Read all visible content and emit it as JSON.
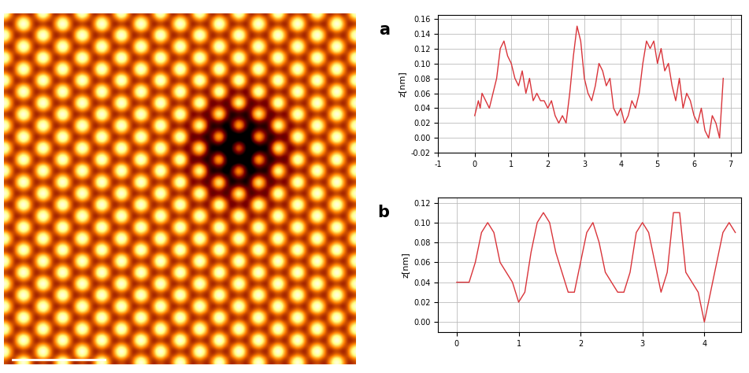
{
  "chart_data": [
    {
      "type": "line",
      "title": "a",
      "y_label": "z[nm]",
      "color": "#d9343a",
      "grid": true,
      "x": [
        0.0,
        0.1,
        0.15,
        0.2,
        0.3,
        0.4,
        0.5,
        0.6,
        0.7,
        0.8,
        0.9,
        1.0,
        1.1,
        1.2,
        1.3,
        1.4,
        1.5,
        1.6,
        1.7,
        1.8,
        1.9,
        2.0,
        2.1,
        2.2,
        2.3,
        2.4,
        2.5,
        2.6,
        2.7,
        2.8,
        2.9,
        3.0,
        3.1,
        3.2,
        3.3,
        3.4,
        3.5,
        3.6,
        3.7,
        3.8,
        3.9,
        4.0,
        4.1,
        4.2,
        4.3,
        4.4,
        4.5,
        4.6,
        4.7,
        4.8,
        4.9,
        5.0,
        5.1,
        5.2,
        5.3,
        5.4,
        5.5,
        5.6,
        5.7,
        5.8,
        5.9,
        6.0,
        6.1,
        6.2,
        6.3,
        6.4,
        6.5,
        6.6,
        6.7,
        6.8
      ],
      "values": [
        0.03,
        0.05,
        0.04,
        0.06,
        0.05,
        0.04,
        0.06,
        0.08,
        0.12,
        0.13,
        0.11,
        0.1,
        0.08,
        0.07,
        0.09,
        0.06,
        0.08,
        0.05,
        0.06,
        0.05,
        0.05,
        0.04,
        0.05,
        0.03,
        0.02,
        0.03,
        0.02,
        0.06,
        0.11,
        0.15,
        0.13,
        0.08,
        0.06,
        0.05,
        0.07,
        0.1,
        0.09,
        0.07,
        0.08,
        0.04,
        0.03,
        0.04,
        0.02,
        0.03,
        0.05,
        0.04,
        0.06,
        0.1,
        0.13,
        0.12,
        0.13,
        0.1,
        0.12,
        0.09,
        0.1,
        0.07,
        0.05,
        0.08,
        0.04,
        0.06,
        0.05,
        0.03,
        0.02,
        0.04,
        0.01,
        0.0,
        0.03,
        0.02,
        0.0,
        0.08
      ],
      "xlim": [
        -1,
        7.3
      ],
      "xticks": [
        -1,
        0,
        1,
        2,
        3,
        4,
        5,
        6,
        7
      ],
      "ylim": [
        -0.02,
        0.165
      ],
      "yticks": [
        -0.02,
        {
          "value": 0.0,
          "label": "0.00"
        },
        0.02,
        0.04,
        0.06,
        0.08,
        {
          "value": 0.1,
          "label": "0.10"
        },
        0.12,
        0.14,
        0.16
      ]
    },
    {
      "type": "line",
      "title": "b",
      "y_label": "z[nm]",
      "color": "#d9343a",
      "grid": true,
      "x": [
        0.0,
        0.1,
        0.2,
        0.3,
        0.4,
        0.5,
        0.6,
        0.7,
        0.8,
        0.9,
        1.0,
        1.1,
        1.2,
        1.3,
        1.4,
        1.5,
        1.6,
        1.7,
        1.8,
        1.9,
        2.0,
        2.1,
        2.2,
        2.3,
        2.4,
        2.5,
        2.6,
        2.7,
        2.8,
        2.9,
        3.0,
        3.1,
        3.2,
        3.3,
        3.4,
        3.5,
        3.6,
        3.7,
        3.8,
        3.9,
        4.0,
        4.1,
        4.2,
        4.3,
        4.4,
        4.5
      ],
      "values": [
        0.04,
        0.04,
        0.04,
        0.06,
        0.09,
        0.1,
        0.09,
        0.06,
        0.05,
        0.04,
        0.02,
        0.03,
        0.07,
        0.1,
        0.11,
        0.1,
        0.07,
        0.05,
        0.03,
        0.03,
        0.06,
        0.09,
        0.1,
        0.08,
        0.05,
        0.04,
        0.03,
        0.03,
        0.05,
        0.09,
        0.1,
        0.09,
        0.06,
        0.03,
        0.05,
        0.11,
        0.11,
        0.05,
        0.04,
        0.03,
        0.0,
        0.03,
        0.06,
        0.09,
        0.1,
        0.09
      ],
      "xlim": [
        -0.3,
        4.6
      ],
      "xticks": [
        0,
        1,
        2,
        3,
        4
      ],
      "ylim": [
        -0.01,
        0.125
      ],
      "yticks": [
        {
          "value": 0.0,
          "label": "0.00"
        },
        0.02,
        0.04,
        0.06,
        0.08,
        {
          "value": 0.1,
          "label": "0.10"
        },
        0.12
      ]
    }
  ]
}
